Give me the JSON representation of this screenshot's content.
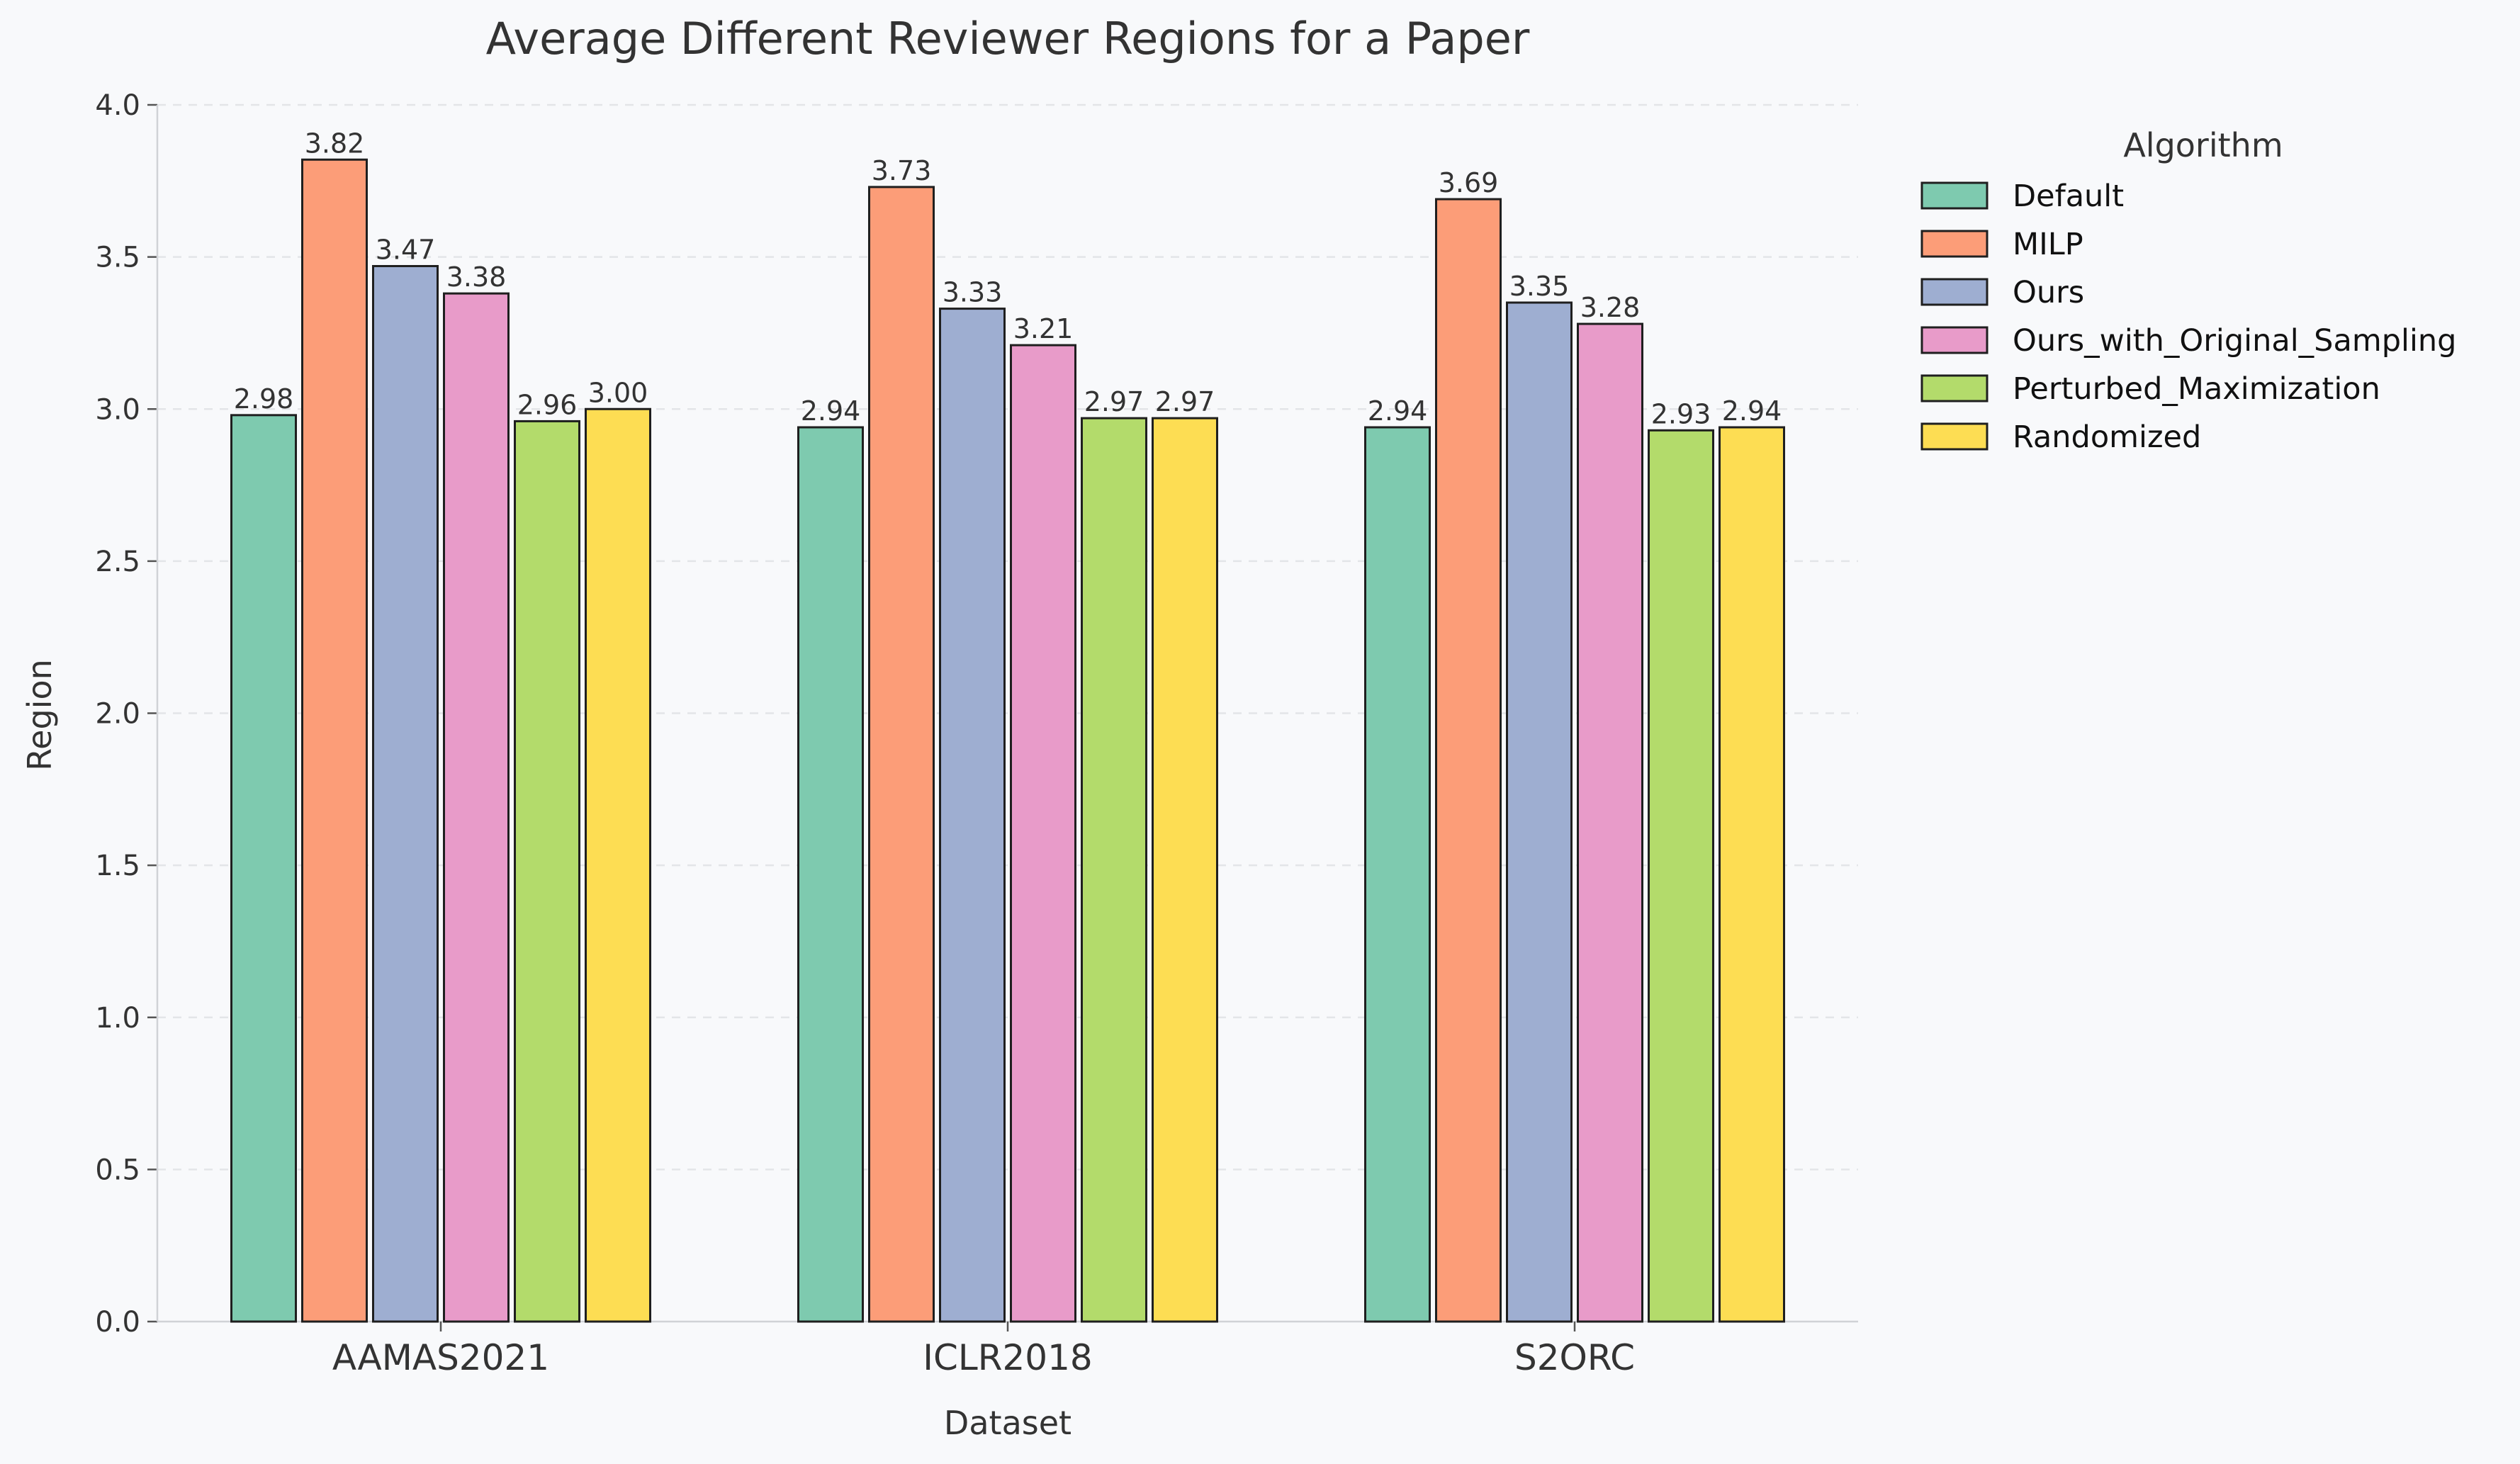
{
  "chart_data": {
    "type": "bar",
    "title": "Average Different Reviewer Regions for a Paper",
    "xlabel": "Dataset",
    "ylabel": "Region",
    "ylim": [
      0,
      4.0
    ],
    "yticks": [
      "0.0",
      "0.5",
      "1.0",
      "1.5",
      "2.0",
      "2.5",
      "3.0",
      "3.5",
      "4.0"
    ],
    "grid": "horizontal dashed",
    "legend_title": "Algorithm",
    "legend_position": "outside right",
    "categories": [
      "AAMAS2021",
      "ICLR2018",
      "S2ORC"
    ],
    "series": [
      {
        "name": "Default",
        "color": "#7ecaaf",
        "values": [
          2.98,
          2.94,
          2.94
        ],
        "labels": [
          "2.98",
          "2.94",
          "2.94"
        ]
      },
      {
        "name": "MILP",
        "color": "#fc9d78",
        "values": [
          3.82,
          3.73,
          3.69
        ],
        "labels": [
          "3.82",
          "3.73",
          "3.69"
        ]
      },
      {
        "name": "Ours",
        "color": "#9eaed1",
        "values": [
          3.47,
          3.33,
          3.35
        ],
        "labels": [
          "3.47",
          "3.33",
          "3.35"
        ]
      },
      {
        "name": "Ours_with_Original_Sampling",
        "color": "#e89bc9",
        "values": [
          3.38,
          3.21,
          3.28
        ],
        "labels": [
          "3.38",
          "3.21",
          "3.28"
        ]
      },
      {
        "name": "Perturbed_Maximization",
        "color": "#b3db6b",
        "values": [
          2.96,
          2.97,
          2.93
        ],
        "labels": [
          "2.96",
          "2.97",
          "2.93"
        ]
      },
      {
        "name": "Randomized",
        "color": "#fddd53",
        "values": [
          3.0,
          2.97,
          2.94
        ],
        "labels": [
          "3.00",
          "2.97",
          "2.94"
        ]
      }
    ]
  }
}
